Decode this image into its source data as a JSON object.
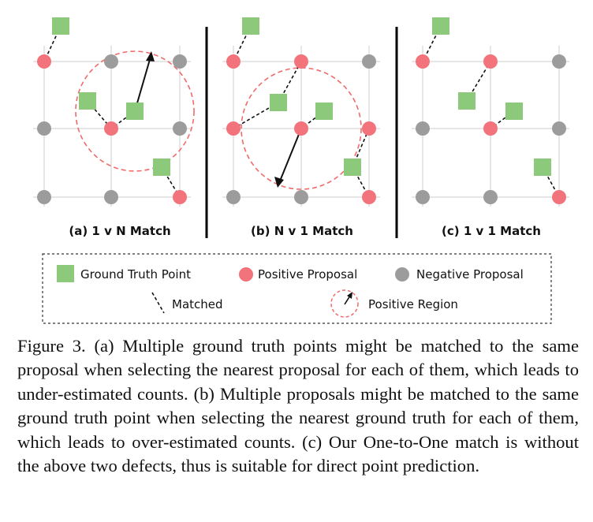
{
  "panels": [
    {
      "id": "a",
      "label": "(a) 1 v N Match"
    },
    {
      "id": "b",
      "label": "(b) N v 1 Match"
    },
    {
      "id": "c",
      "label": "(c) 1 v 1 Match"
    }
  ],
  "legend": {
    "ground_truth": "Ground Truth Point",
    "positive_proposal": "Positive Proposal",
    "negative_proposal": "Negative Proposal",
    "matched": "Matched",
    "positive_region": "Positive Region"
  },
  "colors": {
    "ground_truth": "#8cc97a",
    "positive": "#f2737b",
    "negative": "#9c9c9c",
    "grid": "#d6d6d6",
    "region": "#ef6b6b"
  },
  "caption": "Figure 3. (a) Multiple ground truth points might be matched to the same proposal when selecting the nearest proposal for each of them, which leads to under-estimated counts. (b) Multiple proposals might be matched to the same ground truth point when selecting the nearest ground truth for each of them, which leads to over-estimated counts. (c) Our One-to-One match is without the above two defects, thus is suitable for direct point prediction."
}
